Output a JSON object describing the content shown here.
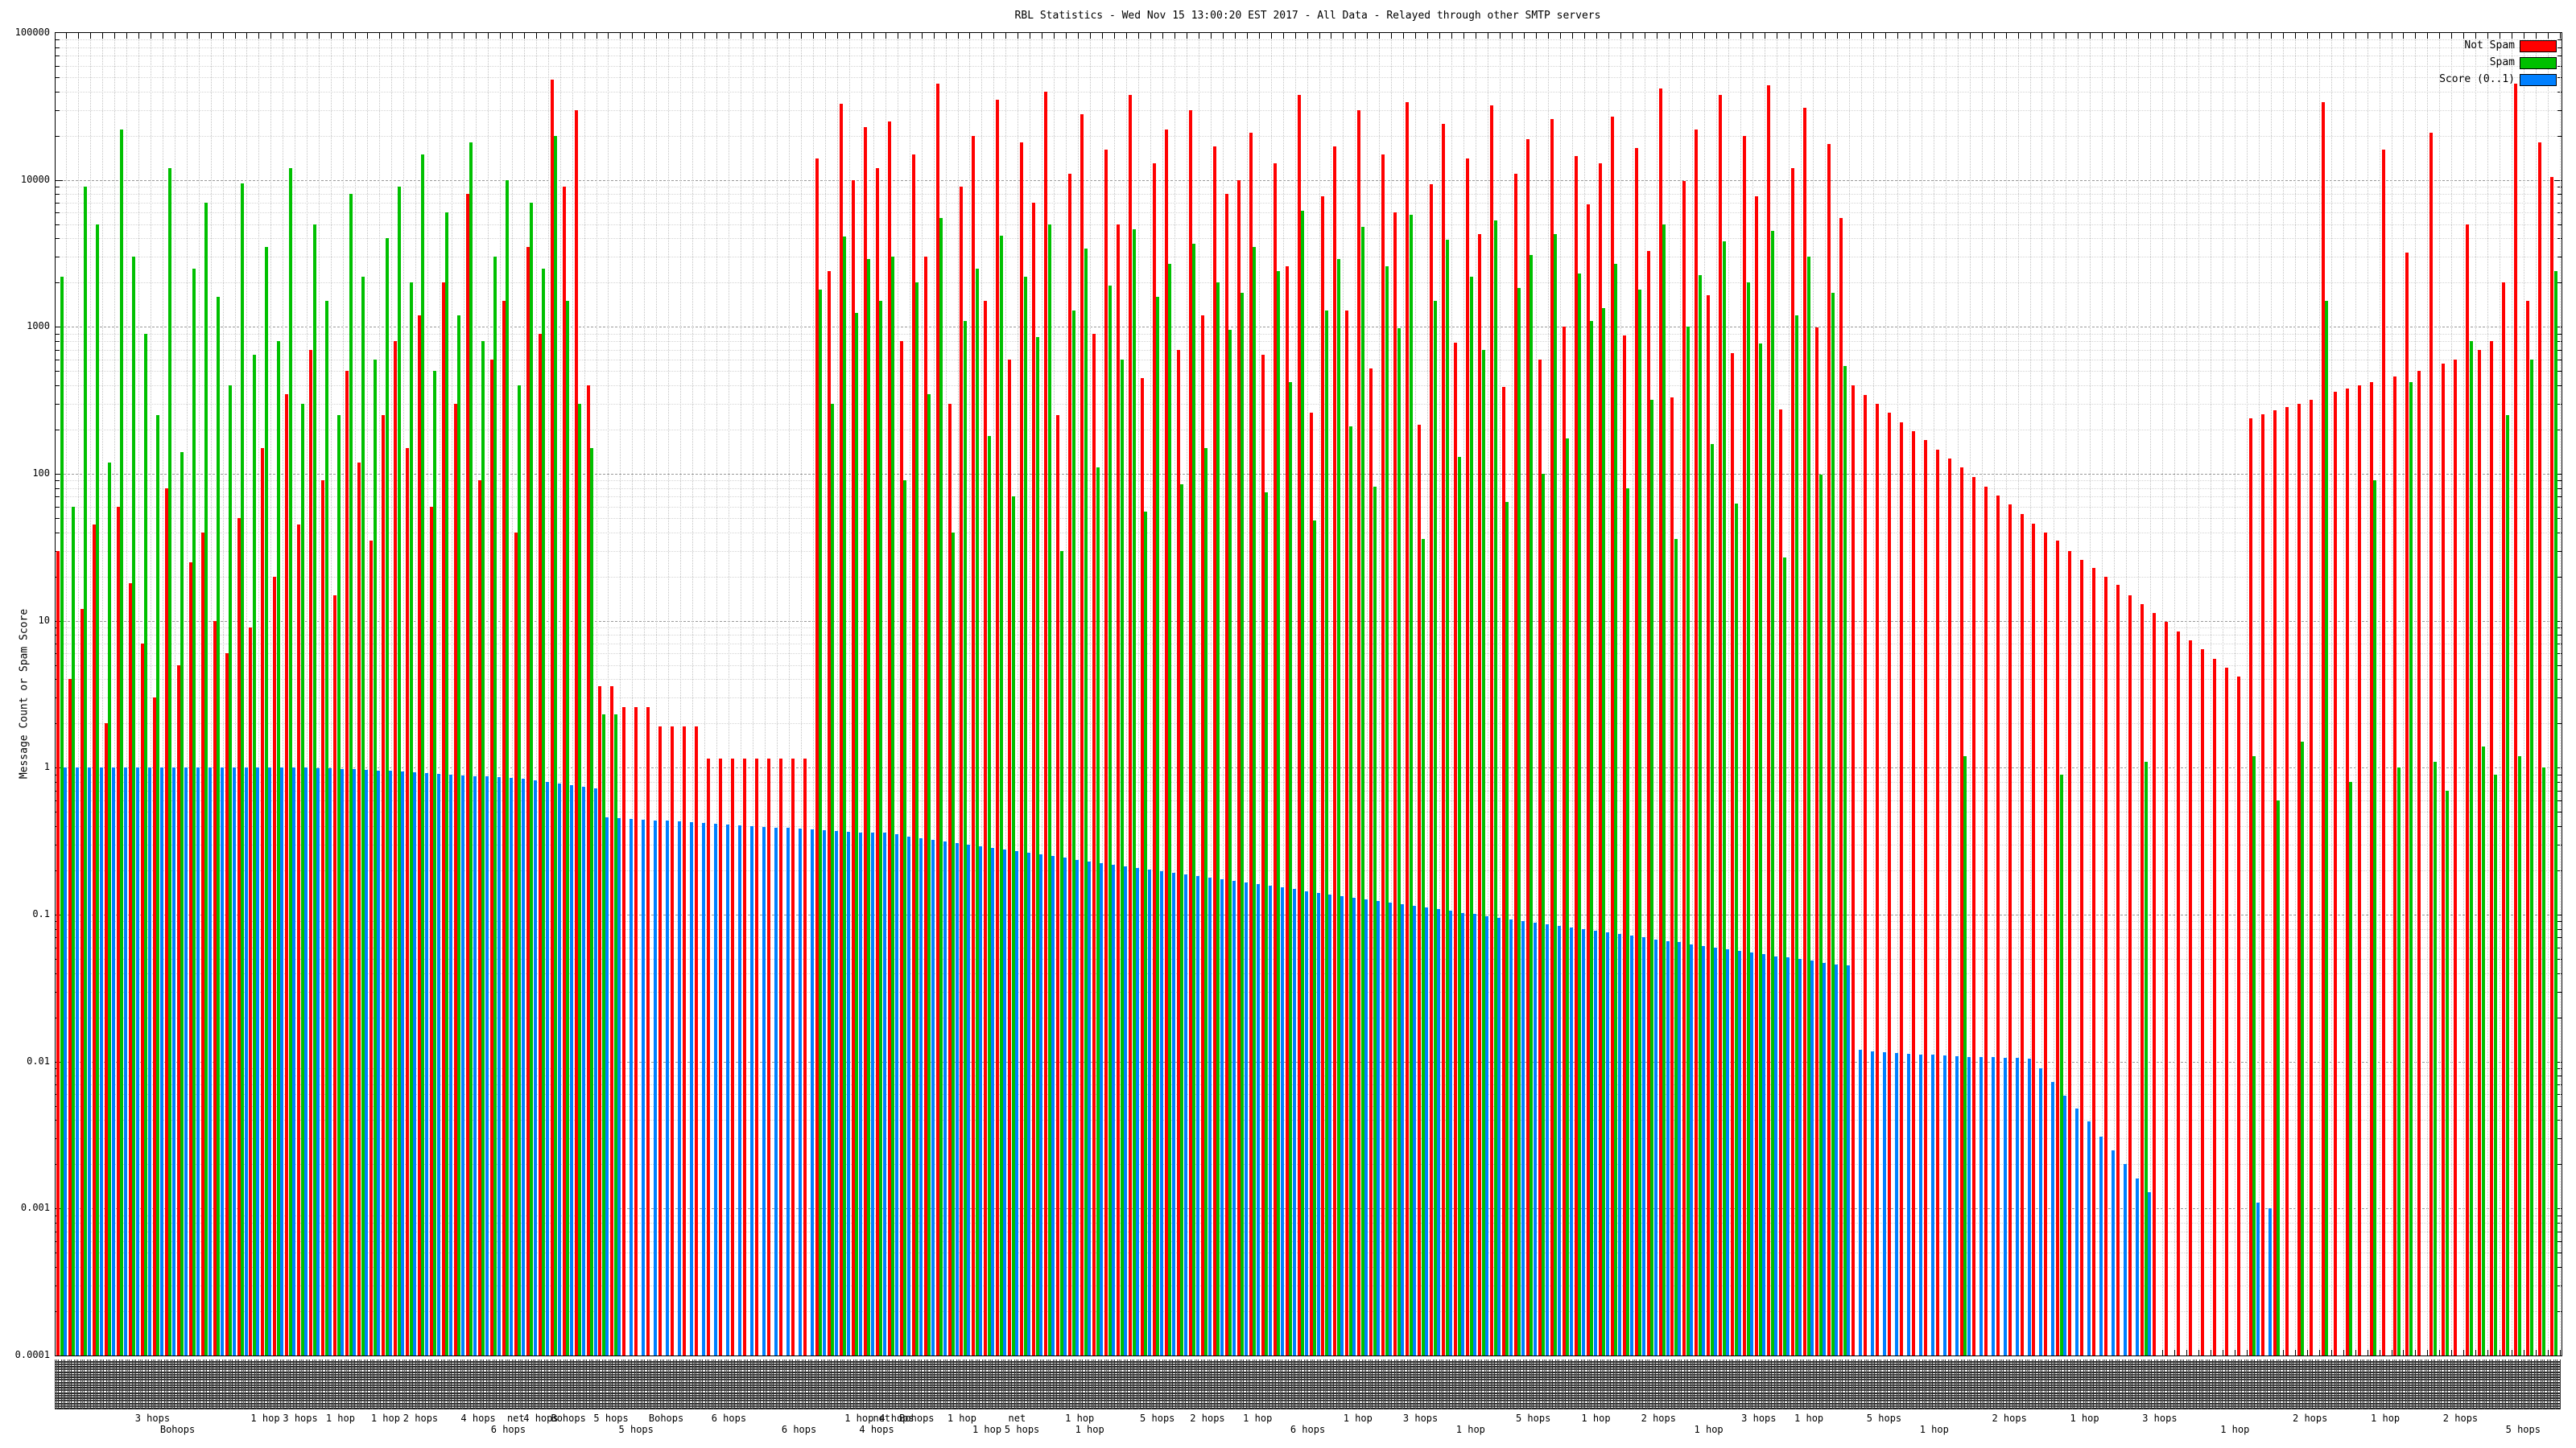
{
  "title": "RBL Statistics - Wed Nov 15 13:00:20 EST 2017 - All Data - Relayed through other SMTP servers",
  "yaxis": {
    "label": "Message Count or Spam Score",
    "scale": "log",
    "min": 0.0001,
    "max": 100000,
    "tick_labels": [
      "100000",
      "10000",
      "1000",
      "100",
      "10",
      "1",
      "0.1",
      "0.01",
      "0.001",
      "0.0001"
    ]
  },
  "xaxis": {
    "labels_note": "rotated RBL/DNSBL hostname labels, overlapping and illegible at this resolution",
    "hop_labels": [
      {
        "pos": 0.039,
        "text": "3 hops",
        "row": 1
      },
      {
        "pos": 0.049,
        "text": "Bohops",
        "row": 2
      },
      {
        "pos": 0.084,
        "text": "1 hop",
        "row": 1
      },
      {
        "pos": 0.098,
        "text": "3 hops",
        "row": 1
      },
      {
        "pos": 0.114,
        "text": "1 hop",
        "row": 1
      },
      {
        "pos": 0.132,
        "text": "1 hop",
        "row": 1
      },
      {
        "pos": 0.146,
        "text": "2 hops",
        "row": 1
      },
      {
        "pos": 0.169,
        "text": "4 hops",
        "row": 1
      },
      {
        "pos": 0.181,
        "text": "6 hops",
        "row": 2
      },
      {
        "pos": 0.184,
        "text": "net",
        "row": 1
      },
      {
        "pos": 0.194,
        "text": "4 hops",
        "row": 1
      },
      {
        "pos": 0.205,
        "text": "Bohops",
        "row": 1
      },
      {
        "pos": 0.222,
        "text": "5 hops",
        "row": 1
      },
      {
        "pos": 0.232,
        "text": "5 hops",
        "row": 2
      },
      {
        "pos": 0.244,
        "text": "Bohops",
        "row": 1
      },
      {
        "pos": 0.269,
        "text": "6 hops",
        "row": 1
      },
      {
        "pos": 0.297,
        "text": "6 hops",
        "row": 2
      },
      {
        "pos": 0.321,
        "text": "1 hop",
        "row": 1
      },
      {
        "pos": 0.328,
        "text": "4 hops",
        "row": 2
      },
      {
        "pos": 0.33,
        "text": "net",
        "row": 1
      },
      {
        "pos": 0.336,
        "text": "4 hops",
        "row": 1
      },
      {
        "pos": 0.344,
        "text": "Bohops",
        "row": 1
      },
      {
        "pos": 0.362,
        "text": "1 hop",
        "row": 1
      },
      {
        "pos": 0.372,
        "text": "1 hop",
        "row": 2
      },
      {
        "pos": 0.384,
        "text": "net",
        "row": 1
      },
      {
        "pos": 0.386,
        "text": "5 hops",
        "row": 2
      },
      {
        "pos": 0.409,
        "text": "1 hop",
        "row": 1
      },
      {
        "pos": 0.413,
        "text": "1 hop",
        "row": 2
      },
      {
        "pos": 0.44,
        "text": "5 hops",
        "row": 1
      },
      {
        "pos": 0.46,
        "text": "2 hops",
        "row": 1
      },
      {
        "pos": 0.48,
        "text": "1 hop",
        "row": 1
      },
      {
        "pos": 0.5,
        "text": "6 hops",
        "row": 2
      },
      {
        "pos": 0.52,
        "text": "1 hop",
        "row": 1
      },
      {
        "pos": 0.545,
        "text": "3 hops",
        "row": 1
      },
      {
        "pos": 0.565,
        "text": "1 hop",
        "row": 2
      },
      {
        "pos": 0.59,
        "text": "5 hops",
        "row": 1
      },
      {
        "pos": 0.615,
        "text": "1 hop",
        "row": 1
      },
      {
        "pos": 0.64,
        "text": "2 hops",
        "row": 1
      },
      {
        "pos": 0.66,
        "text": "1 hop",
        "row": 2
      },
      {
        "pos": 0.68,
        "text": "3 hops",
        "row": 1
      },
      {
        "pos": 0.7,
        "text": "1 hop",
        "row": 1
      },
      {
        "pos": 0.73,
        "text": "5 hops",
        "row": 1
      },
      {
        "pos": 0.75,
        "text": "1 hop",
        "row": 2
      },
      {
        "pos": 0.78,
        "text": "2 hops",
        "row": 1
      },
      {
        "pos": 0.81,
        "text": "1 hop",
        "row": 1
      },
      {
        "pos": 0.84,
        "text": "3 hops",
        "row": 1
      },
      {
        "pos": 0.87,
        "text": "1 hop",
        "row": 2
      },
      {
        "pos": 0.9,
        "text": "2 hops",
        "row": 1
      },
      {
        "pos": 0.93,
        "text": "1 hop",
        "row": 1
      },
      {
        "pos": 0.96,
        "text": "2 hops",
        "row": 1
      },
      {
        "pos": 0.985,
        "text": "5 hops",
        "row": 2
      }
    ]
  },
  "legend": {
    "position": "top-right",
    "entries": [
      {
        "label": "Not Spam",
        "color": "#ff0000"
      },
      {
        "label": "Spam",
        "color": "#00c000"
      },
      {
        "label": "Score (0..1)",
        "color": "#0080ff"
      }
    ]
  },
  "grid": {
    "major_color": "#999999",
    "minor_color": "#d4d4d4",
    "vertical_color": "#c3c3c3"
  },
  "chart_data": {
    "type": "bar",
    "title": "RBL Statistics - Wed Nov 15 13:00:20 EST 2017 - All Data - Relayed through other SMTP servers",
    "xlabel": "",
    "ylabel": "Message Count or Spam Score",
    "yscale": "log",
    "ylim": [
      0.0001,
      100000
    ],
    "grid": true,
    "legend_position": "top-right",
    "n_groups": 208,
    "series": [
      {
        "name": "Not Spam",
        "color": "#ff0000",
        "values": [
          30,
          4,
          12,
          45,
          2,
          60,
          18,
          7,
          3,
          80,
          5,
          25,
          40,
          10,
          6,
          50,
          9,
          150,
          20,
          350,
          45,
          700,
          90,
          15,
          500,
          120,
          35,
          250,
          800,
          150,
          1200,
          60,
          2000,
          300,
          8000,
          90,
          600,
          1500,
          40,
          3500,
          900,
          48000,
          9000,
          30000,
          400,
          3.6,
          3.6,
          2.6,
          2.6,
          2.6,
          1.9,
          1.9,
          1.9,
          1.9,
          1.15,
          1.15,
          1.15,
          1.15,
          1.15,
          1.15,
          1.15,
          1.15,
          1.15,
          14000,
          2400,
          33000,
          10000,
          23000,
          12000,
          25000,
          800,
          15000,
          3000,
          45000,
          300,
          9000,
          20000,
          1500,
          35000,
          600,
          18000,
          7000,
          40000,
          250,
          11000,
          28000,
          900,
          16000,
          5000,
          38000,
          450,
          13000,
          22000,
          700,
          30000,
          1200,
          17000,
          8000,
          10000,
          21000,
          650,
          13000,
          2600,
          38000,
          260,
          7700,
          17000,
          1300,
          30000,
          520,
          15000,
          6000,
          34000,
          215,
          9400,
          24000,
          780,
          14000,
          4300,
          32000,
          390,
          11000,
          19000,
          600,
          26000,
          1000,
          14500,
          6800,
          13000,
          27000,
          880,
          16500,
          3300,
          42000,
          330,
          9900,
          22000,
          1650,
          38000,
          660,
          20000,
          7700,
          44000,
          275,
          12000,
          31000,
          990,
          17500,
          5500,
          400,
          346,
          300,
          260,
          225,
          195,
          169,
          146,
          127,
          110,
          95,
          82,
          71,
          62,
          53,
          46,
          40,
          35,
          30,
          26,
          23,
          20,
          17.5,
          15,
          13,
          11.3,
          9.8,
          8.5,
          7.4,
          6.4,
          5.5,
          4.8,
          4.2,
          240,
          255,
          270,
          285,
          300,
          320,
          34000,
          360,
          380,
          400,
          420,
          16000,
          460,
          3200,
          500,
          21000,
          560,
          600,
          5000,
          700,
          800,
          2000,
          45000,
          1500,
          18000,
          10500
        ]
      },
      {
        "name": "Spam",
        "color": "#00c000",
        "values": [
          2200,
          60,
          9000,
          5000,
          120,
          22000,
          3000,
          900,
          250,
          12000,
          140,
          2500,
          7000,
          1600,
          400,
          9500,
          650,
          3500,
          800,
          12000,
          300,
          5000,
          1500,
          250,
          8000,
          2200,
          600,
          4000,
          9000,
          2000,
          15000,
          500,
          6000,
          1200,
          18000,
          800,
          3000,
          10000,
          400,
          7000,
          2500,
          20000,
          1500,
          300,
          150,
          2.3,
          2.3,
          null,
          null,
          null,
          null,
          null,
          null,
          null,
          null,
          null,
          null,
          null,
          null,
          null,
          null,
          null,
          null,
          1800,
          300,
          4100,
          1250,
          2900,
          1500,
          3000,
          90,
          2000,
          350,
          5500,
          40,
          1100,
          2500,
          180,
          4200,
          70,
          2200,
          850,
          5000,
          30,
          1300,
          3400,
          110,
          1900,
          600,
          4600,
          55,
          1600,
          2700,
          85,
          3700,
          150,
          2000,
          950,
          1700,
          3500,
          75,
          2400,
          420,
          6200,
          48,
          1300,
          2900,
          210,
          4800,
          82,
          2600,
          980,
          5800,
          36,
          1500,
          3900,
          130,
          2200,
          700,
          5300,
          64,
          1850,
          3100,
          100,
          4300,
          175,
          2300,
          1100,
          1350,
          2700,
          80,
          1800,
          320,
          5000,
          36,
          1000,
          2250,
          160,
          3800,
          63,
          2000,
          770,
          4500,
          27,
          1200,
          3000,
          99,
          1700,
          540,
          null,
          null,
          null,
          null,
          null,
          null,
          null,
          null,
          null,
          1.2,
          null,
          null,
          null,
          null,
          null,
          null,
          null,
          0.9,
          null,
          null,
          null,
          null,
          null,
          null,
          1.1,
          null,
          null,
          null,
          null,
          null,
          null,
          null,
          null,
          1.2,
          null,
          0.6,
          null,
          1.5,
          null,
          1500,
          null,
          0.8,
          null,
          90,
          null,
          1.0,
          420,
          null,
          1.1,
          0.7,
          null,
          800,
          1.4,
          0.9,
          250,
          1.2,
          600,
          1.0,
          2400
        ]
      },
      {
        "name": "Score (0..1)",
        "color": "#0080ff",
        "values": [
          1.0,
          1.0,
          1.0,
          1.0,
          1.0,
          1.0,
          1.0,
          1.0,
          1.0,
          1.0,
          1.0,
          1.0,
          1.0,
          1.0,
          1.0,
          1.0,
          1.0,
          1.0,
          1.0,
          1.0,
          1.0,
          0.99,
          0.99,
          0.98,
          0.98,
          0.97,
          0.96,
          0.95,
          0.94,
          0.93,
          0.92,
          0.91,
          0.9,
          0.89,
          0.88,
          0.87,
          0.86,
          0.85,
          0.84,
          0.82,
          0.8,
          0.78,
          0.76,
          0.74,
          0.72,
          0.46,
          0.455,
          0.45,
          0.445,
          0.44,
          0.435,
          0.43,
          0.425,
          0.42,
          0.415,
          0.41,
          0.405,
          0.4,
          0.396,
          0.392,
          0.388,
          0.384,
          0.38,
          0.376,
          0.372,
          0.368,
          0.364,
          0.362,
          0.36,
          0.351,
          0.342,
          0.333,
          0.324,
          0.316,
          0.308,
          0.3,
          0.292,
          0.285,
          0.278,
          0.27,
          0.263,
          0.257,
          0.25,
          0.244,
          0.237,
          0.231,
          0.225,
          0.22,
          0.214,
          0.208,
          0.203,
          0.198,
          0.193,
          0.188,
          0.183,
          0.178,
          0.174,
          0.169,
          0.165,
          0.161,
          0.157,
          0.153,
          0.149,
          0.145,
          0.141,
          0.137,
          0.134,
          0.13,
          0.127,
          0.124,
          0.121,
          0.118,
          0.115,
          0.112,
          0.109,
          0.106,
          0.103,
          0.101,
          0.098,
          0.095,
          0.093,
          0.091,
          0.088,
          0.086,
          0.084,
          0.082,
          0.08,
          0.078,
          0.076,
          0.074,
          0.072,
          0.07,
          0.068,
          0.066,
          0.065,
          0.063,
          0.061,
          0.06,
          0.058,
          0.057,
          0.055,
          0.054,
          0.052,
          0.051,
          0.05,
          0.049,
          0.047,
          0.046,
          0.045,
          0.012,
          0.0118,
          0.0116,
          0.0115,
          0.0113,
          0.0112,
          0.0111,
          0.011,
          0.0109,
          0.0108,
          0.0107,
          0.0107,
          0.0106,
          0.0106,
          0.0105,
          0.009,
          0.0073,
          0.0059,
          0.0048,
          0.0039,
          0.0031,
          0.0025,
          0.002,
          0.0016,
          0.0013,
          null,
          null,
          null,
          null,
          null,
          null,
          null,
          null,
          0.0011,
          0.001,
          null,
          null,
          null,
          null,
          null,
          null,
          null,
          null,
          null,
          null,
          null,
          null,
          null,
          null,
          null,
          null,
          null,
          null,
          null,
          null,
          null,
          null
        ]
      }
    ]
  }
}
